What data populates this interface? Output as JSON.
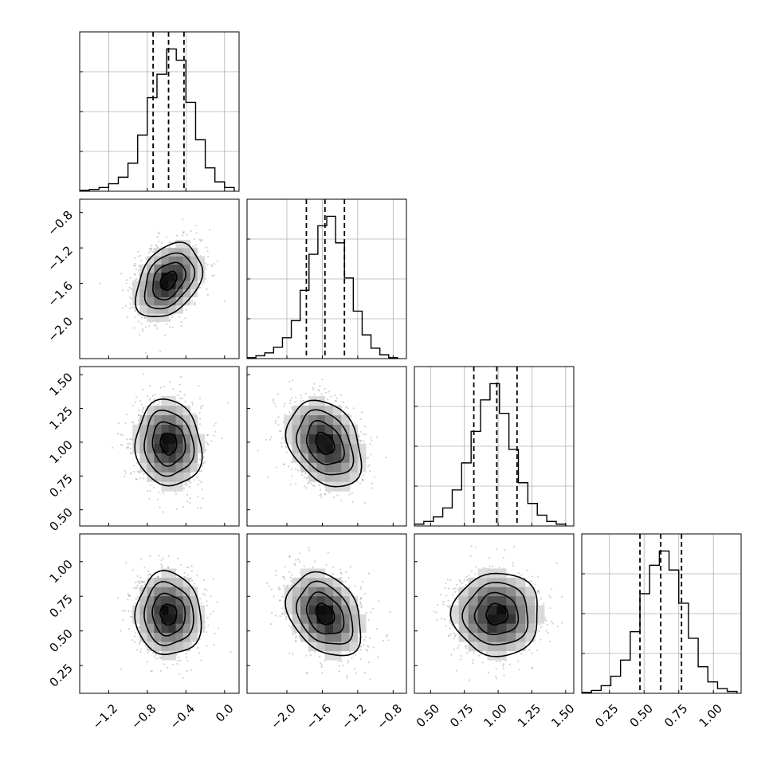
{
  "chart_data": {
    "type": "corner",
    "parameters": [
      {
        "index": 0,
        "center": -0.58,
        "sigma": 0.17,
        "range": [
          -1.5,
          0.15
        ],
        "ticks": [
          -1.2,
          -0.8,
          -0.4,
          0.0
        ],
        "tick_labels": [
          "−1.2",
          "−0.8",
          "−0.4",
          "0.0"
        ],
        "quantiles": [
          -0.74,
          -0.58,
          -0.42
        ]
      },
      {
        "index": 1,
        "center": -1.57,
        "sigma": 0.21,
        "range": [
          -2.45,
          -0.65
        ],
        "ticks": [
          -2.0,
          -1.6,
          -1.2,
          -0.8
        ],
        "tick_labels": [
          "−2.0",
          "−1.6",
          "−1.2",
          "−0.8"
        ],
        "quantiles": [
          -1.78,
          -1.57,
          -1.35
        ]
      },
      {
        "index": 2,
        "center": 0.99,
        "sigma": 0.16,
        "range": [
          0.38,
          1.56
        ],
        "ticks": [
          0.5,
          0.75,
          1.0,
          1.25,
          1.5
        ],
        "tick_labels": [
          "0.50",
          "0.75",
          "1.00",
          "1.25",
          "1.50"
        ],
        "quantiles": [
          0.82,
          0.99,
          1.14
        ]
      },
      {
        "index": 3,
        "center": 0.62,
        "sigma": 0.15,
        "range": [
          0.05,
          1.2
        ],
        "ticks": [
          0.25,
          0.5,
          0.75,
          1.0
        ],
        "tick_labels": [
          "0.25",
          "0.50",
          "0.75",
          "1.00"
        ],
        "quantiles": [
          0.47,
          0.62,
          0.77
        ]
      }
    ],
    "histograms": [
      {
        "param": 0,
        "bin_edges": [
          -1.5,
          -1.4,
          -1.3,
          -1.2,
          -1.1,
          -1.0,
          -0.9,
          -0.8,
          -0.7,
          -0.6,
          -0.5,
          -0.4,
          -0.3,
          -0.2,
          -0.1,
          0.0,
          0.1
        ],
        "counts": [
          1,
          2,
          4,
          8,
          15,
          30,
          60,
          100,
          125,
          152,
          140,
          95,
          55,
          25,
          10,
          4
        ]
      },
      {
        "param": 1,
        "bin_edges": [
          -2.45,
          -2.35,
          -2.25,
          -2.15,
          -2.05,
          -1.95,
          -1.85,
          -1.75,
          -1.65,
          -1.55,
          -1.45,
          -1.35,
          -1.25,
          -1.15,
          -1.05,
          -0.95,
          -0.85,
          -0.75
        ],
        "counts": [
          1,
          3,
          6,
          12,
          22,
          40,
          72,
          110,
          140,
          150,
          122,
          85,
          50,
          25,
          11,
          4,
          1
        ]
      },
      {
        "param": 2,
        "bin_edges": [
          0.38,
          0.45,
          0.52,
          0.59,
          0.66,
          0.73,
          0.8,
          0.87,
          0.94,
          1.01,
          1.08,
          1.15,
          1.22,
          1.29,
          1.36,
          1.43,
          1.5
        ],
        "counts": [
          2,
          5,
          10,
          20,
          40,
          70,
          105,
          140,
          158,
          125,
          85,
          48,
          25,
          12,
          5,
          2
        ]
      },
      {
        "param": 3,
        "bin_edges": [
          0.05,
          0.12,
          0.19,
          0.26,
          0.33,
          0.4,
          0.47,
          0.54,
          0.61,
          0.68,
          0.75,
          0.82,
          0.89,
          0.96,
          1.03,
          1.1,
          1.17
        ],
        "counts": [
          1,
          3,
          8,
          18,
          35,
          65,
          105,
          135,
          150,
          130,
          95,
          58,
          28,
          12,
          5,
          2
        ]
      }
    ],
    "pairs": [
      {
        "x_param": 0,
        "y_param": 1,
        "correlation": 0.35
      },
      {
        "x_param": 0,
        "y_param": 2,
        "correlation": -0.08
      },
      {
        "x_param": 1,
        "y_param": 2,
        "correlation": -0.3
      },
      {
        "x_param": 0,
        "y_param": 3,
        "correlation": -0.05
      },
      {
        "x_param": 1,
        "y_param": 3,
        "correlation": -0.3
      },
      {
        "x_param": 2,
        "y_param": 3,
        "correlation": 0.0
      }
    ],
    "contour_levels_sigma": [
      0.5,
      1.0,
      1.5,
      2.0
    ],
    "grid": true,
    "title": "",
    "axis_labels": []
  }
}
